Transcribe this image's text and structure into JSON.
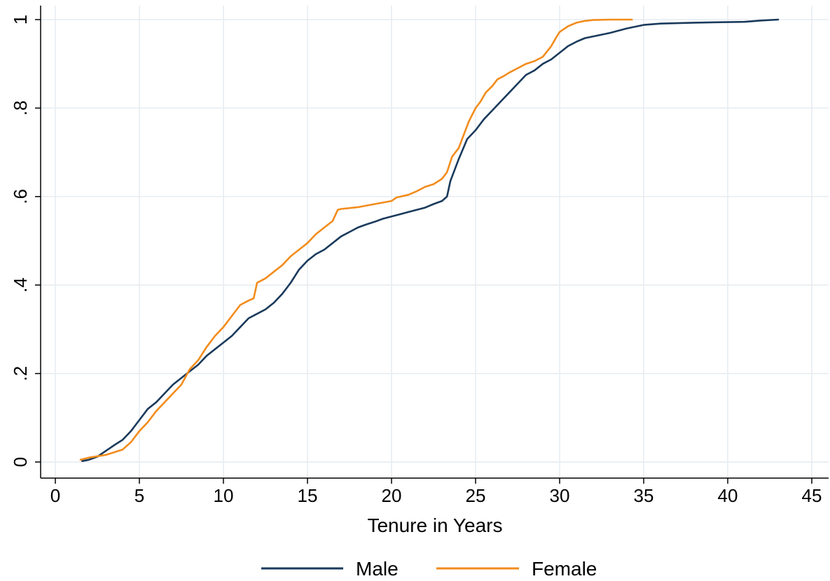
{
  "chart_data": {
    "type": "line",
    "title": "",
    "xlabel": "Tenure in Years",
    "ylabel": "",
    "xlim": [
      0,
      45
    ],
    "ylim": [
      0,
      1
    ],
    "xticks": [
      0,
      5,
      10,
      15,
      20,
      25,
      30,
      35,
      40,
      45
    ],
    "xtick_labels": [
      "0",
      "5",
      "10",
      "15",
      "20",
      "25",
      "30",
      "35",
      "40",
      "45"
    ],
    "yticks": [
      0,
      0.2,
      0.4,
      0.6,
      0.8,
      1
    ],
    "ytick_labels": [
      "0",
      ".2",
      ".4",
      ".6",
      ".8",
      "1"
    ],
    "grid": true,
    "legend_position": "bottom",
    "series": [
      {
        "name": "Male",
        "color": "#1a3a5c",
        "x": [
          1.6,
          2.0,
          2.5,
          3.0,
          3.5,
          4.0,
          4.5,
          5.0,
          5.5,
          6.0,
          6.5,
          7.0,
          7.5,
          8.0,
          8.5,
          9.0,
          9.5,
          10.0,
          10.5,
          11.0,
          11.5,
          12.0,
          12.5,
          13.0,
          13.5,
          14.0,
          14.5,
          15.0,
          15.5,
          16.0,
          16.5,
          17.0,
          17.5,
          18.0,
          18.5,
          19.0,
          19.5,
          20.0,
          20.5,
          21.0,
          21.5,
          22.0,
          22.5,
          23.0,
          23.3,
          23.5,
          24.0,
          24.5,
          25.0,
          25.5,
          26.0,
          26.5,
          27.0,
          27.5,
          28.0,
          28.5,
          29.0,
          29.5,
          30.0,
          30.5,
          31.0,
          31.5,
          32.0,
          33.0,
          34.0,
          35.0,
          36.0,
          38.0,
          41.0,
          42.0,
          43.0
        ],
        "values": [
          0.002,
          0.005,
          0.012,
          0.025,
          0.038,
          0.05,
          0.07,
          0.095,
          0.12,
          0.135,
          0.155,
          0.175,
          0.19,
          0.205,
          0.22,
          0.24,
          0.255,
          0.27,
          0.285,
          0.305,
          0.325,
          0.335,
          0.345,
          0.36,
          0.38,
          0.405,
          0.435,
          0.455,
          0.47,
          0.48,
          0.495,
          0.51,
          0.52,
          0.53,
          0.537,
          0.543,
          0.55,
          0.555,
          0.56,
          0.565,
          0.57,
          0.575,
          0.583,
          0.59,
          0.6,
          0.635,
          0.685,
          0.73,
          0.75,
          0.775,
          0.795,
          0.815,
          0.835,
          0.855,
          0.875,
          0.885,
          0.9,
          0.91,
          0.925,
          0.94,
          0.95,
          0.958,
          0.962,
          0.97,
          0.98,
          0.988,
          0.991,
          0.993,
          0.995,
          0.998,
          1.0
        ]
      },
      {
        "name": "Female",
        "color": "#f28c1c",
        "x": [
          1.5,
          2.0,
          2.5,
          3.0,
          3.5,
          4.0,
          4.5,
          5.0,
          5.5,
          6.0,
          6.5,
          7.0,
          7.5,
          8.0,
          8.5,
          9.0,
          9.5,
          10.0,
          10.5,
          11.0,
          11.5,
          11.8,
          12.0,
          12.5,
          13.0,
          13.5,
          14.0,
          14.5,
          15.0,
          15.5,
          16.0,
          16.5,
          16.8,
          17.0,
          18.0,
          19.0,
          20.0,
          20.3,
          21.0,
          21.5,
          22.0,
          22.5,
          23.0,
          23.3,
          23.6,
          24.0,
          24.3,
          24.6,
          25.0,
          25.3,
          25.6,
          26.0,
          26.3,
          26.7,
          27.0,
          27.5,
          28.0,
          28.5,
          29.0,
          29.5,
          29.8,
          30.0,
          30.5,
          31.0,
          31.5,
          32.0,
          33.0,
          34.3
        ],
        "values": [
          0.005,
          0.01,
          0.013,
          0.016,
          0.022,
          0.028,
          0.045,
          0.07,
          0.09,
          0.115,
          0.135,
          0.155,
          0.175,
          0.21,
          0.23,
          0.26,
          0.285,
          0.305,
          0.33,
          0.355,
          0.365,
          0.37,
          0.405,
          0.415,
          0.43,
          0.445,
          0.465,
          0.48,
          0.495,
          0.515,
          0.53,
          0.545,
          0.57,
          0.572,
          0.576,
          0.583,
          0.59,
          0.598,
          0.604,
          0.612,
          0.622,
          0.628,
          0.64,
          0.655,
          0.69,
          0.71,
          0.74,
          0.77,
          0.8,
          0.815,
          0.835,
          0.85,
          0.865,
          0.873,
          0.88,
          0.89,
          0.9,
          0.906,
          0.916,
          0.94,
          0.96,
          0.972,
          0.985,
          0.993,
          0.997,
          0.999,
          1.0,
          1.0
        ]
      }
    ]
  }
}
